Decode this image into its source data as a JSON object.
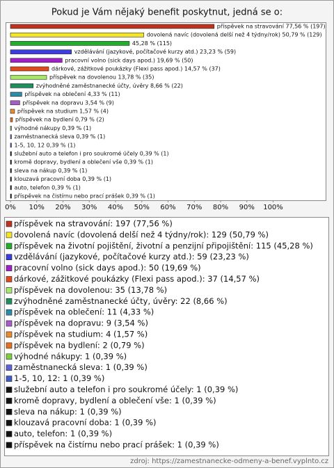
{
  "chart_data": {
    "type": "barh",
    "title": "Pokud je Vám nějaký benefit poskytnut, jedná se o:",
    "categories": [
      "příspěvek na stravování",
      "dovolená navíc (dovolená delší než 4 týdny/rok)",
      "příspěvek na životní pojištění, životní a penzijní připojištění",
      "vzdělávání (jazykové, počítačové kurzy atd.)",
      "pracovní volno (sick days apod.)",
      "dárkové, zážitkové poukázky (Flexi pass apod.)",
      "příspěvek na dovolenou",
      "zvýhodněné zaměstnanecké účty, úvěry",
      "příspěvek na oblečení",
      "příspěvek na dopravu",
      "příspěvek na studium",
      "příspěvek na bydlení",
      "výhodné nákupy",
      "zaměstnanecká sleva",
      "1-5, 10, 12",
      "služební auto a telefon i pro soukromé účely",
      "kromě dopravy, bydlení a oblečení vše",
      " sleva na nákup",
      "klouzavá pracovní doba",
      "auto, telefon",
      "příspěvek na čistírnu nebo prací prášek"
    ],
    "values": [
      77.56,
      50.79,
      45.28,
      23.23,
      19.69,
      14.57,
      13.78,
      8.66,
      4.33,
      3.54,
      1.57,
      0.79,
      0.39,
      0.39,
      0.39,
      0.39,
      0.39,
      0.39,
      0.39,
      0.39,
      0.39
    ],
    "value_labels": [
      "příspěvek na stravování 77,56 % (197)",
      "dovolená navíc (dovolená delší než 4 týdny/rok) 50,79 % (129)",
      "45,28 % (115)",
      "vzdělávání (jazykové, počítačové kurzy atd.) 23,23 % (59)",
      "pracovní volno (sick days apod.) 19,69 % (50)",
      "dárkové, zážitkové poukázky (Flexi pass apod.) 14,57 % (37)",
      "příspěvek na dovolenou 13,78 % (35)",
      "zvýhodněné zaměstnanecké účty, úvěry 8,66 % (22)",
      "příspěvek na oblečení 4,33 % (11)",
      "příspěvek na dopravu 3,54 % (9)",
      "příspěvek na studium 1,57 % (4)",
      "příspěvek na bydlení 0,79 % (2)",
      "výhodné nákupy 0,39 % (1)",
      "zaměstnanecká sleva 0,39 % (1)",
      "1-5, 10, 12 0,39 % (1)",
      "služební auto a telefon i pro soukromé účely 0,39 % (1)",
      "kromě dopravy, bydlení a oblečení vše 0,39 % (1)",
      " sleva na nákup 0,39 % (1)",
      "klouzavá pracovní doba 0,39 % (1)",
      "auto, telefon 0,39 % (1)",
      "příspěvek na čistírnu nebo prací prášek 0,39 % (1)"
    ],
    "legend_labels": [
      "příspěvek na stravování: 197 (77,56 %)",
      "dovolená navíc (dovolená delší než 4 týdny/rok): 129 (50,79 %)",
      "příspěvek na životní pojištění, životní a penzijní připojištění: 115 (45,28 %)",
      "vzdělávání (jazykové, počítačové kurzy atd.): 59 (23,23 %)",
      "pracovní volno (sick days apod.): 50 (19,69 %)",
      "dárkové, zážitkové poukázky (Flexi pass apod.): 37 (14,57 %)",
      "příspěvek na dovolenou: 35 (13,78 %)",
      "zvýhodněné zaměstnanecké účty, úvěry: 22 (8,66 %)",
      "příspěvek na oblečení: 11 (4,33 %)",
      "příspěvek na dopravu: 9 (3,54 %)",
      "příspěvek na studium: 4 (1,57 %)",
      "příspěvek na bydlení: 2 (0,79 %)",
      "výhodné nákupy: 1 (0,39 %)",
      "zaměstnanecká sleva: 1 (0,39 %)",
      "1-5, 10, 12: 1 (0,39 %)",
      "služební auto a telefon i pro soukromé účely: 1 (0,39 %)",
      "kromě dopravy, bydlení a oblečení vše: 1 (0,39 %)",
      " sleva na nákup: 1 (0,39 %)",
      "klouzavá pracovní doba: 1 (0,39 %)",
      "auto, telefon: 1 (0,39 %)",
      "příspěvek na čistírnu nebo prací prášek: 1 (0,39 %)"
    ],
    "colors": [
      "#c0321e",
      "#f5e62a",
      "#22b02a",
      "#3c3ce0",
      "#a020c8",
      "#e04a1c",
      "#a8e868",
      "#1e9060",
      "#2c8ca8",
      "#a85cc8",
      "#ec8a2c",
      "#e8701c",
      "#7cd040",
      "#6060d8",
      "#3c5cc8",
      "#111111",
      "#111111",
      "#111111",
      "#111111",
      "#111111",
      "#111111"
    ],
    "xlim": [
      0,
      120
    ],
    "xticks": [
      {
        "value": 0,
        "label": "0%"
      },
      {
        "value": 10,
        "label": "10%"
      },
      {
        "value": 20,
        "label": "20%"
      },
      {
        "value": 30,
        "label": "30%"
      },
      {
        "value": 40,
        "label": "40%"
      },
      {
        "value": 50,
        "label": "50%"
      },
      {
        "value": 60,
        "label": "60%"
      },
      {
        "value": 70,
        "label": "70%"
      },
      {
        "value": 80,
        "label": "80%"
      },
      {
        "value": 90,
        "label": "90%"
      },
      {
        "value": 100,
        "label": "100%"
      }
    ],
    "source": "zdroj: https://zamestnanecke-odmeny-a-benef.vyplnto.cz"
  }
}
